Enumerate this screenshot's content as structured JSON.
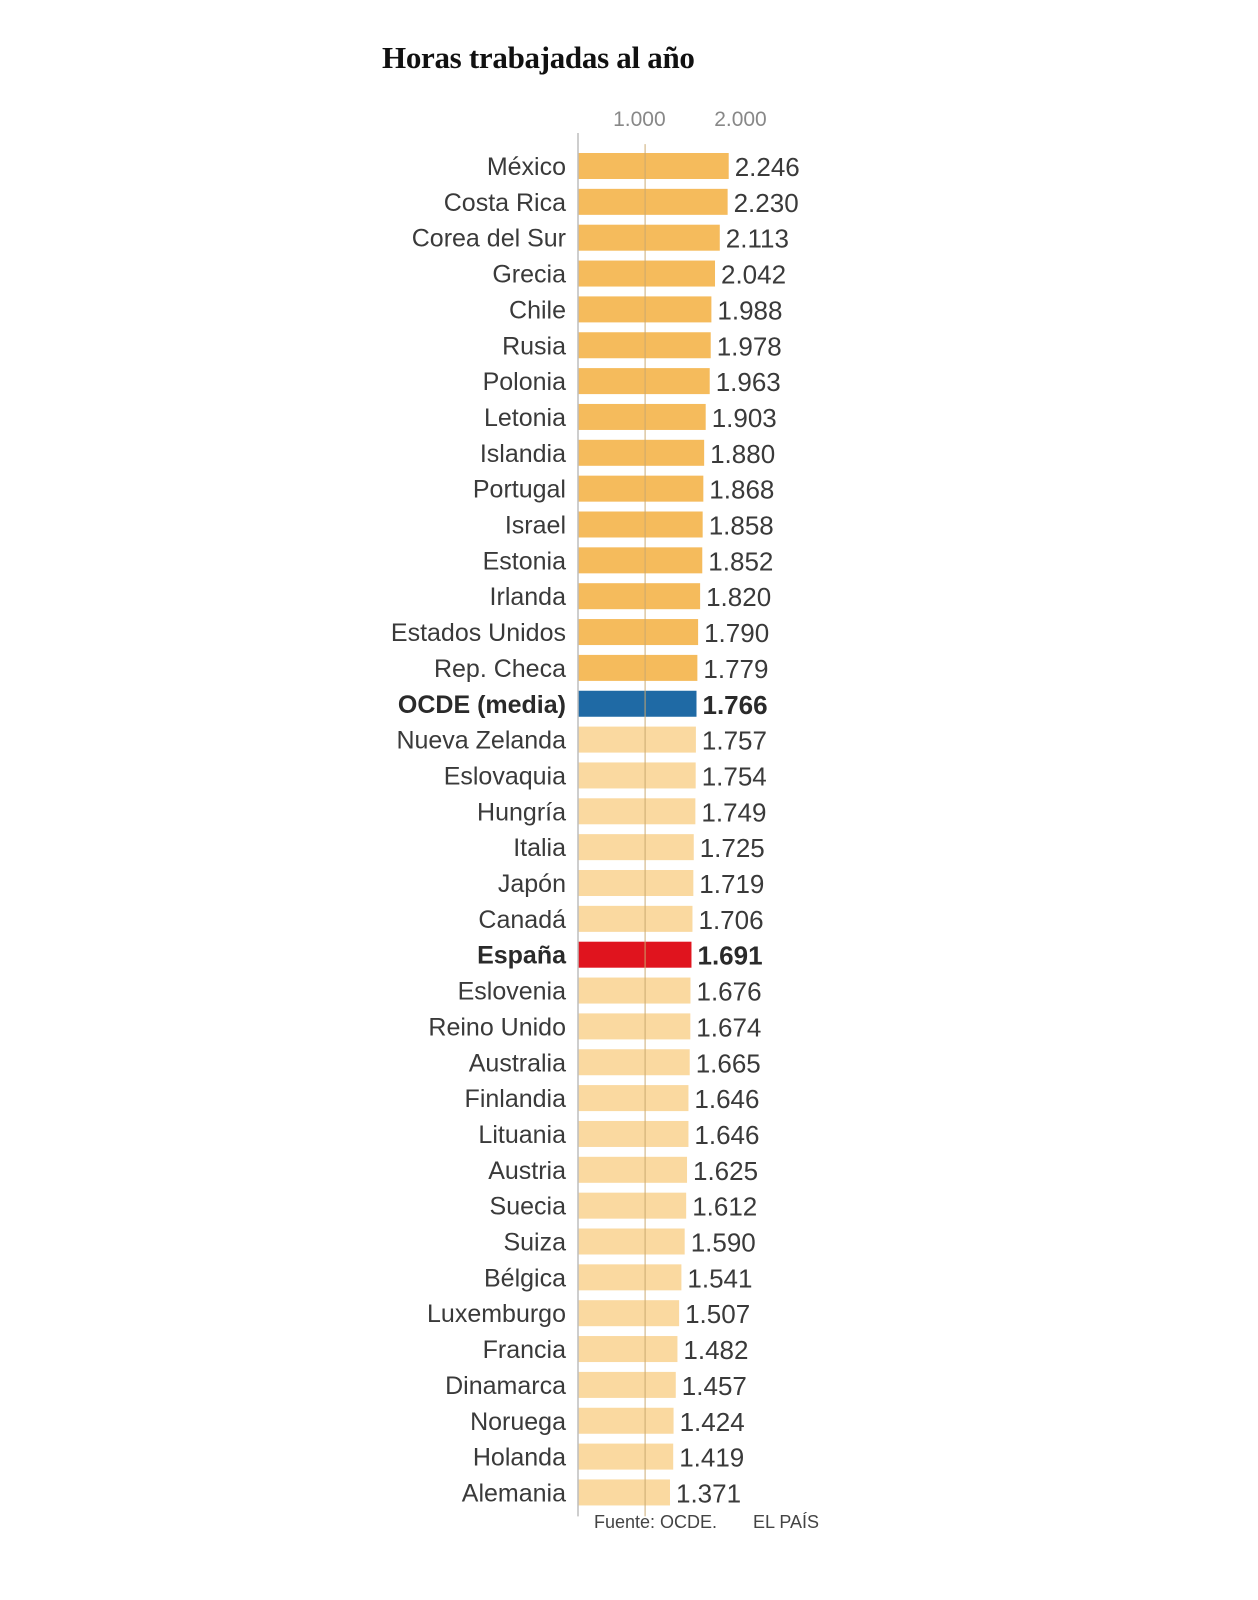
{
  "chart_data": {
    "type": "bar",
    "orientation": "horizontal",
    "title": "Horas trabajadas al año",
    "xticks": [
      "1.000",
      "2.000"
    ],
    "xtick_values": [
      1000,
      2000
    ],
    "xlim": [
      0,
      2246
    ],
    "categories": [
      "México",
      "Costa Rica",
      "Corea del Sur",
      "Grecia",
      "Chile",
      "Rusia",
      "Polonia",
      "Letonia",
      "Islandia",
      "Portugal",
      "Israel",
      "Estonia",
      "Irlanda",
      "Estados Unidos",
      "Rep. Checa",
      "OCDE (media)",
      "Nueva Zelanda",
      "Eslovaquia",
      "Hungría",
      "Italia",
      "Japón",
      "Canadá",
      "España",
      "Eslovenia",
      "Reino Unido",
      "Australia",
      "Finlandia",
      "Lituania",
      "Austria",
      "Suecia",
      "Suiza",
      "Bélgica",
      "Luxemburgo",
      "Francia",
      "Dinamarca",
      "Noruega",
      "Holanda",
      "Alemania"
    ],
    "values": [
      2246,
      2230,
      2113,
      2042,
      1988,
      1978,
      1963,
      1903,
      1880,
      1868,
      1858,
      1852,
      1820,
      1790,
      1779,
      1766,
      1757,
      1754,
      1749,
      1725,
      1719,
      1706,
      1691,
      1676,
      1674,
      1665,
      1646,
      1646,
      1625,
      1612,
      1590,
      1541,
      1507,
      1482,
      1457,
      1424,
      1419,
      1371
    ],
    "value_labels": [
      "2.246",
      "2.230",
      "2.113",
      "2.042",
      "1.988",
      "1.978",
      "1.963",
      "1.903",
      "1.880",
      "1.868",
      "1.858",
      "1.852",
      "1.820",
      "1.790",
      "1.779",
      "1.766",
      "1.757",
      "1.754",
      "1.749",
      "1.725",
      "1.719",
      "1.706",
      "1.691",
      "1.676",
      "1.674",
      "1.665",
      "1.646",
      "1.646",
      "1.625",
      "1.612",
      "1.590",
      "1.541",
      "1.507",
      "1.482",
      "1.457",
      "1.424",
      "1.419",
      "1.371"
    ],
    "highlighted": [
      "OCDE (media)",
      "España"
    ],
    "colors": {
      "above_average": "#f5bb5c",
      "below_average": "#fad9a0",
      "average": "#1f6aa5",
      "spain": "#e0141e",
      "axis": "#bdbdbd",
      "gridline": "#c9a86e"
    },
    "grid": true,
    "legend": "none"
  },
  "footer": {
    "source": "Fuente: OCDE.",
    "brand": "EL PAÍS"
  }
}
